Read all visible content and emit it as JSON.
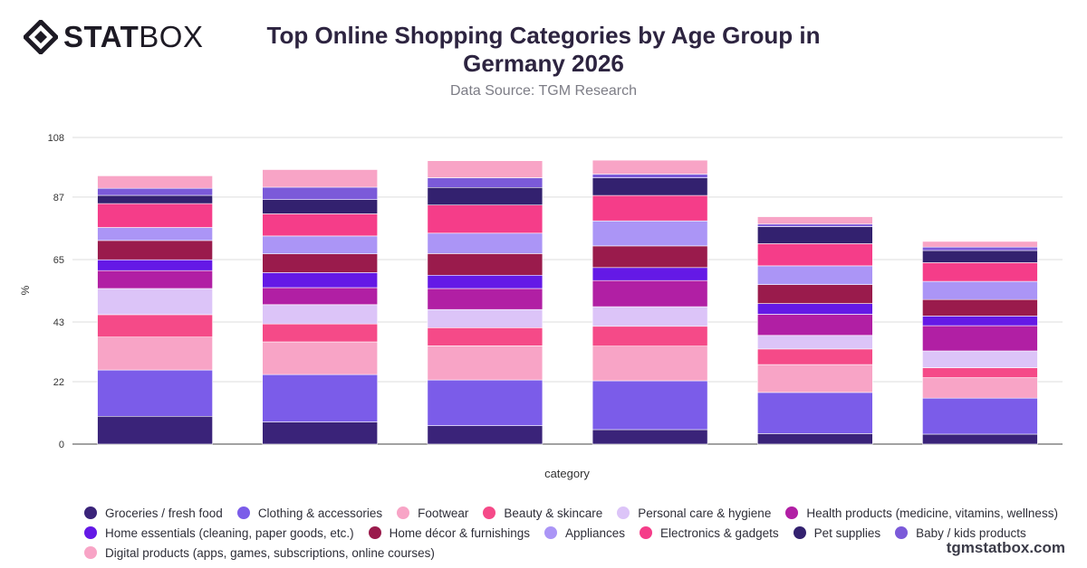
{
  "brand": {
    "logo_bold": "STAT",
    "logo_light": "BOX"
  },
  "footer": {
    "url": "tgmstatbox.com"
  },
  "chart_data": {
    "type": "bar",
    "stacked": true,
    "title": "Top Online Shopping Categories by Age Group in Germany 2026",
    "subtitle": "Data Source: TGM Research",
    "xlabel": "category",
    "ylabel": "%",
    "ylim": [
      0,
      108
    ],
    "yticks": [
      0,
      22,
      43,
      65,
      87,
      108
    ],
    "grid": true,
    "legend_position": "bottom",
    "categories": [
      "",
      "",
      "",
      "",
      "",
      ""
    ],
    "series": [
      {
        "name": "Groceries / fresh food",
        "color": "#3a2379",
        "values": [
          9.8,
          7.8,
          6.5,
          5.1,
          3.7,
          3.5
        ]
      },
      {
        "name": "Clothing & accessories",
        "color": "#7b5ce9",
        "values": [
          16.3,
          16.7,
          16.1,
          17.2,
          14.5,
          12.7
        ]
      },
      {
        "name": "Footwear",
        "color": "#f8a4c6",
        "values": [
          11.6,
          11.5,
          12.0,
          12.2,
          9.8,
          7.2
        ]
      },
      {
        "name": "Beauty & skincare",
        "color": "#f54a88",
        "values": [
          7.9,
          6.3,
          6.4,
          7.0,
          5.5,
          3.5
        ]
      },
      {
        "name": "Personal care & hygiene",
        "color": "#dcc4f8",
        "values": [
          9.2,
          6.8,
          6.4,
          6.9,
          4.8,
          5.9
        ]
      },
      {
        "name": "Health products (medicine, vitamins, wellness)",
        "color": "#b11fa4",
        "values": [
          6.3,
          6.0,
          7.4,
          9.2,
          7.4,
          8.9
        ]
      },
      {
        "name": "Home essentials (cleaning, paper goods, etc.)",
        "color": "#6419e6",
        "values": [
          3.8,
          5.3,
          4.7,
          4.6,
          3.8,
          3.4
        ]
      },
      {
        "name": "Home décor & furnishings",
        "color": "#9a1b4c",
        "values": [
          6.8,
          6.6,
          7.6,
          7.6,
          6.7,
          5.8
        ]
      },
      {
        "name": "Appliances",
        "color": "#ab95f6",
        "values": [
          4.6,
          6.3,
          7.2,
          8.8,
          6.6,
          6.4
        ]
      },
      {
        "name": "Electronics & gadgets",
        "color": "#f53d89",
        "values": [
          8.4,
          7.8,
          9.9,
          9.0,
          7.8,
          6.6
        ]
      },
      {
        "name": "Pet supplies",
        "color": "#33216f",
        "values": [
          2.9,
          5.0,
          6.2,
          6.2,
          6.0,
          4.3
        ]
      },
      {
        "name": "Baby / kids products",
        "color": "#7b5ad9",
        "values": [
          2.5,
          4.4,
          3.4,
          1.3,
          0.9,
          1.2
        ]
      },
      {
        "name": "Digital products (apps, games, subscriptions, online courses)",
        "color": "#f8a4c6",
        "values": [
          4.4,
          6.2,
          6.0,
          4.9,
          2.6,
          2.0
        ]
      }
    ]
  }
}
